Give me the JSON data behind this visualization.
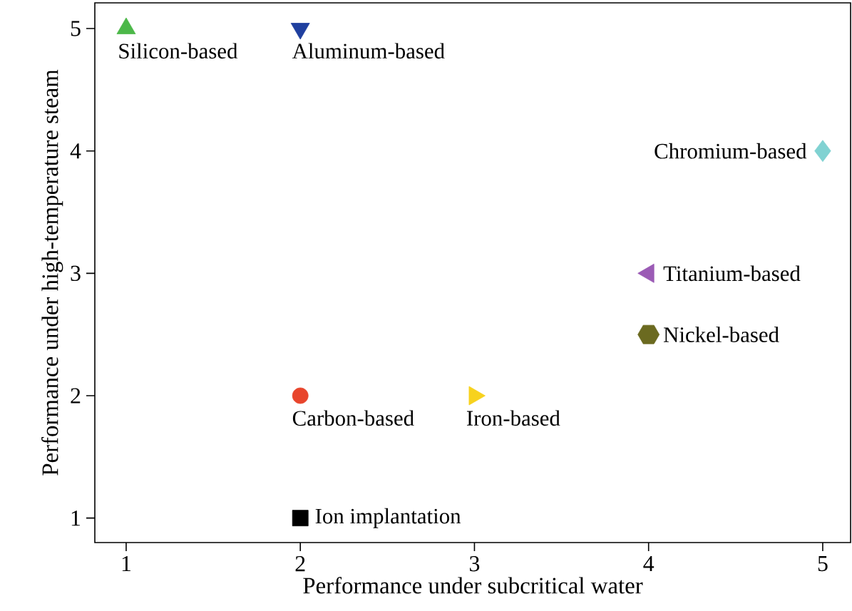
{
  "chart_data": {
    "type": "scatter",
    "xlabel": "Performance under subcritical water",
    "ylabel": "Performance under high-temperature steam",
    "xlim": [
      0.82,
      5.16
    ],
    "ylim": [
      0.8,
      5.21
    ],
    "xticks": [
      1,
      2,
      3,
      4,
      5
    ],
    "yticks": [
      1,
      2,
      3,
      4,
      5
    ],
    "grid": false,
    "series": [
      {
        "name": "Silicon-based",
        "color": "#4cb849",
        "marker": "triangle",
        "x": [
          1
        ],
        "values": [
          5
        ]
      },
      {
        "name": "Aluminum-based",
        "color": "#1f3f9f",
        "marker": "triangle-down",
        "x": [
          2
        ],
        "values": [
          5
        ]
      },
      {
        "name": "Chromium-based",
        "color": "#80d2d2",
        "marker": "diamond",
        "x": [
          5
        ],
        "values": [
          4
        ]
      },
      {
        "name": "Titanium-based",
        "color": "#9b5bb5",
        "marker": "triangle-left",
        "x": [
          4
        ],
        "values": [
          3
        ]
      },
      {
        "name": "Nickel-based",
        "color": "#6b6a20",
        "x": [
          4
        ],
        "values": [
          2.5
        ]
      },
      {
        "name": "Carbon-based",
        "color": "#e8452c",
        "marker": "circle",
        "x": [
          2
        ],
        "values": [
          2
        ]
      },
      {
        "name": "Iron-based",
        "color": "#f7d21e",
        "marker": "triangle-right",
        "x": [
          3
        ],
        "values": [
          2
        ]
      },
      {
        "name": "Ion implantation",
        "color": "#000000",
        "marker": "square",
        "x": [
          2
        ],
        "values": [
          1
        ]
      }
    ]
  }
}
